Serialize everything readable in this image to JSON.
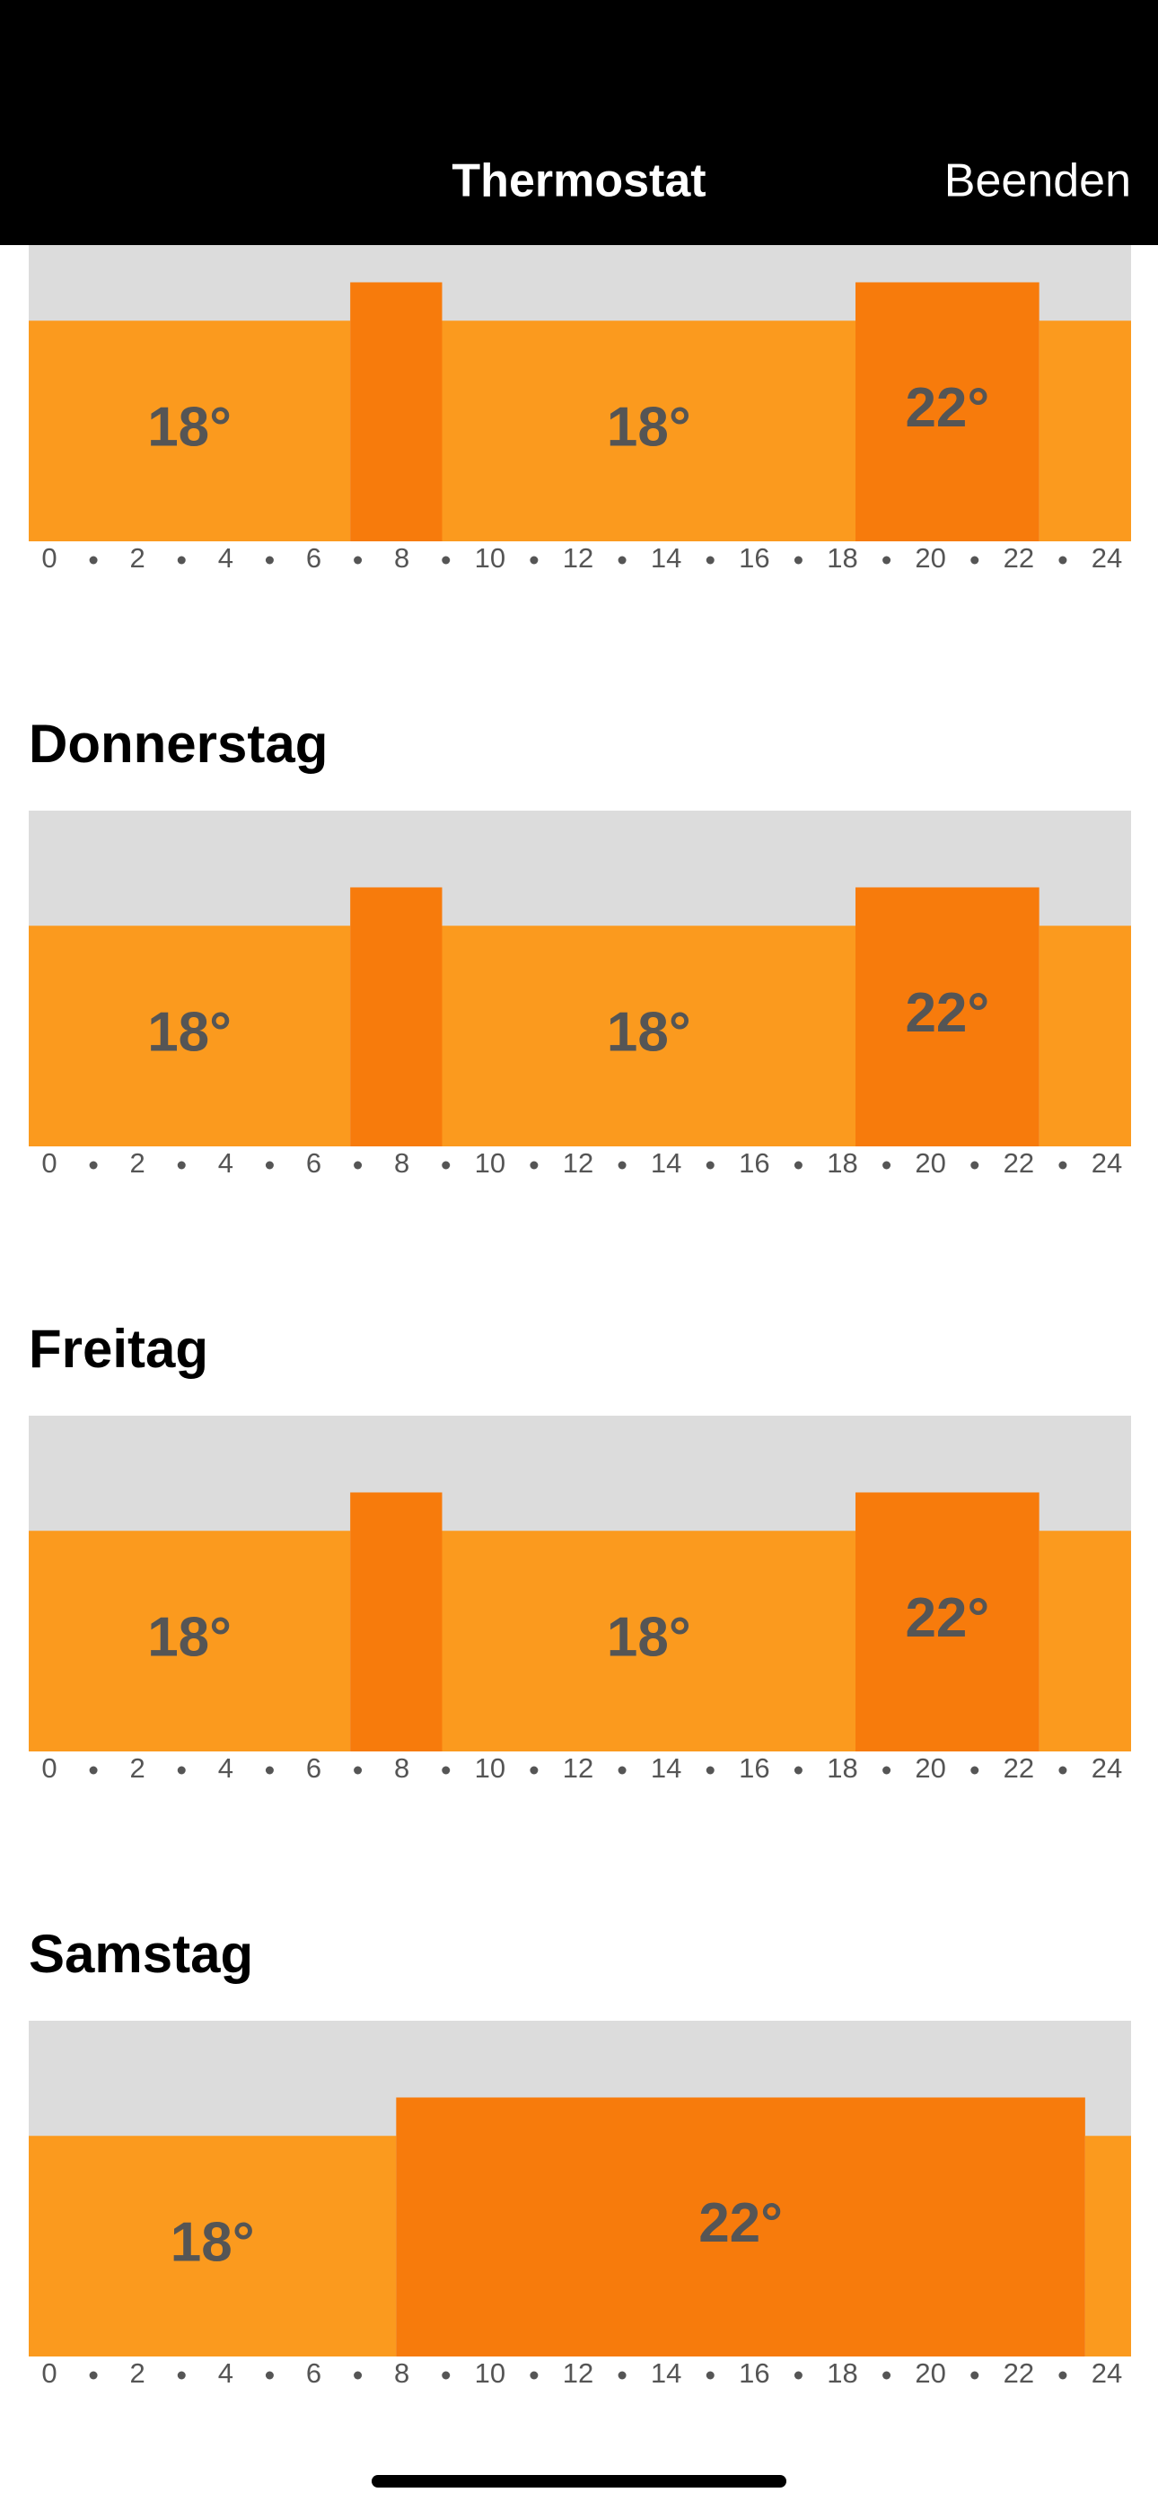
{
  "header": {
    "title": "Thermostat",
    "action": "Beenden"
  },
  "xlim": [
    0,
    24
  ],
  "ylim": [
    -5,
    30
  ],
  "xticks": [
    0,
    2,
    4,
    6,
    8,
    10,
    12,
    14,
    16,
    18,
    20,
    22,
    24
  ],
  "colors": {
    "18": "#fb9a1e",
    "22": "#f77b0c"
  },
  "days": [
    {
      "segments": [
        {
          "start": 0,
          "end": 7,
          "temp": 18,
          "label": "18°"
        },
        {
          "start": 7,
          "end": 9,
          "temp": 22
        },
        {
          "start": 9,
          "end": 18,
          "temp": 18,
          "label": "18°"
        },
        {
          "start": 18,
          "end": 22,
          "temp": 22,
          "label": "22°"
        },
        {
          "start": 22,
          "end": 24,
          "temp": 18
        }
      ]
    },
    {
      "title": "Donnerstag",
      "segments": [
        {
          "start": 0,
          "end": 7,
          "temp": 18,
          "label": "18°"
        },
        {
          "start": 7,
          "end": 9,
          "temp": 22
        },
        {
          "start": 9,
          "end": 18,
          "temp": 18,
          "label": "18°"
        },
        {
          "start": 18,
          "end": 22,
          "temp": 22,
          "label": "22°"
        },
        {
          "start": 22,
          "end": 24,
          "temp": 18
        }
      ]
    },
    {
      "title": "Freitag",
      "segments": [
        {
          "start": 0,
          "end": 7,
          "temp": 18,
          "label": "18°"
        },
        {
          "start": 7,
          "end": 9,
          "temp": 22
        },
        {
          "start": 9,
          "end": 18,
          "temp": 18,
          "label": "18°"
        },
        {
          "start": 18,
          "end": 22,
          "temp": 22,
          "label": "22°"
        },
        {
          "start": 22,
          "end": 24,
          "temp": 18
        }
      ]
    },
    {
      "title": "Samstag",
      "segments": [
        {
          "start": 0,
          "end": 8,
          "temp": 18,
          "label": "18°"
        },
        {
          "start": 8,
          "end": 23,
          "temp": 22,
          "label": "22°"
        },
        {
          "start": 23,
          "end": 24,
          "temp": 18
        }
      ]
    }
  ]
}
